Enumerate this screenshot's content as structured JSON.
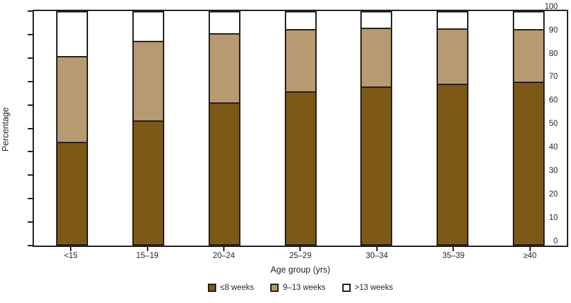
{
  "colors": {
    "le8_weeks": "#7D5917",
    "w9_13_weeks": "#B69A72",
    "gt13_weeks": "#FFFFFF",
    "frame": "#231F20",
    "text": "#262430"
  },
  "chart_data": {
    "type": "bar",
    "subtype": "stacked",
    "title": "",
    "xlabel": "Age group (yrs)",
    "ylabel": "Percentage",
    "ylim": [
      0,
      100
    ],
    "yticks": [
      "0",
      "10",
      "20",
      "30",
      "40",
      "50",
      "60",
      "70",
      "80",
      "90",
      "100"
    ],
    "grid": false,
    "legend_position": "bottom-center",
    "categories": [
      "<15",
      "15–19",
      "20–24",
      "25–29",
      "30–34",
      "35–39",
      "≥40"
    ],
    "series": [
      {
        "name": "≤8 weeks",
        "color": "#7D5917",
        "values": [
          44.3,
          53.4,
          61.1,
          66.0,
          68.2,
          69.2,
          70.2
        ]
      },
      {
        "name": "9–13 weeks",
        "color": "#B69A72",
        "values": [
          37.0,
          34.5,
          30.0,
          26.8,
          25.2,
          23.9,
          22.6
        ]
      },
      {
        "name": ">13 weeks",
        "color": "#FFFFFF",
        "values": [
          18.7,
          12.1,
          8.9,
          7.2,
          6.6,
          6.9,
          7.2
        ]
      }
    ]
  }
}
